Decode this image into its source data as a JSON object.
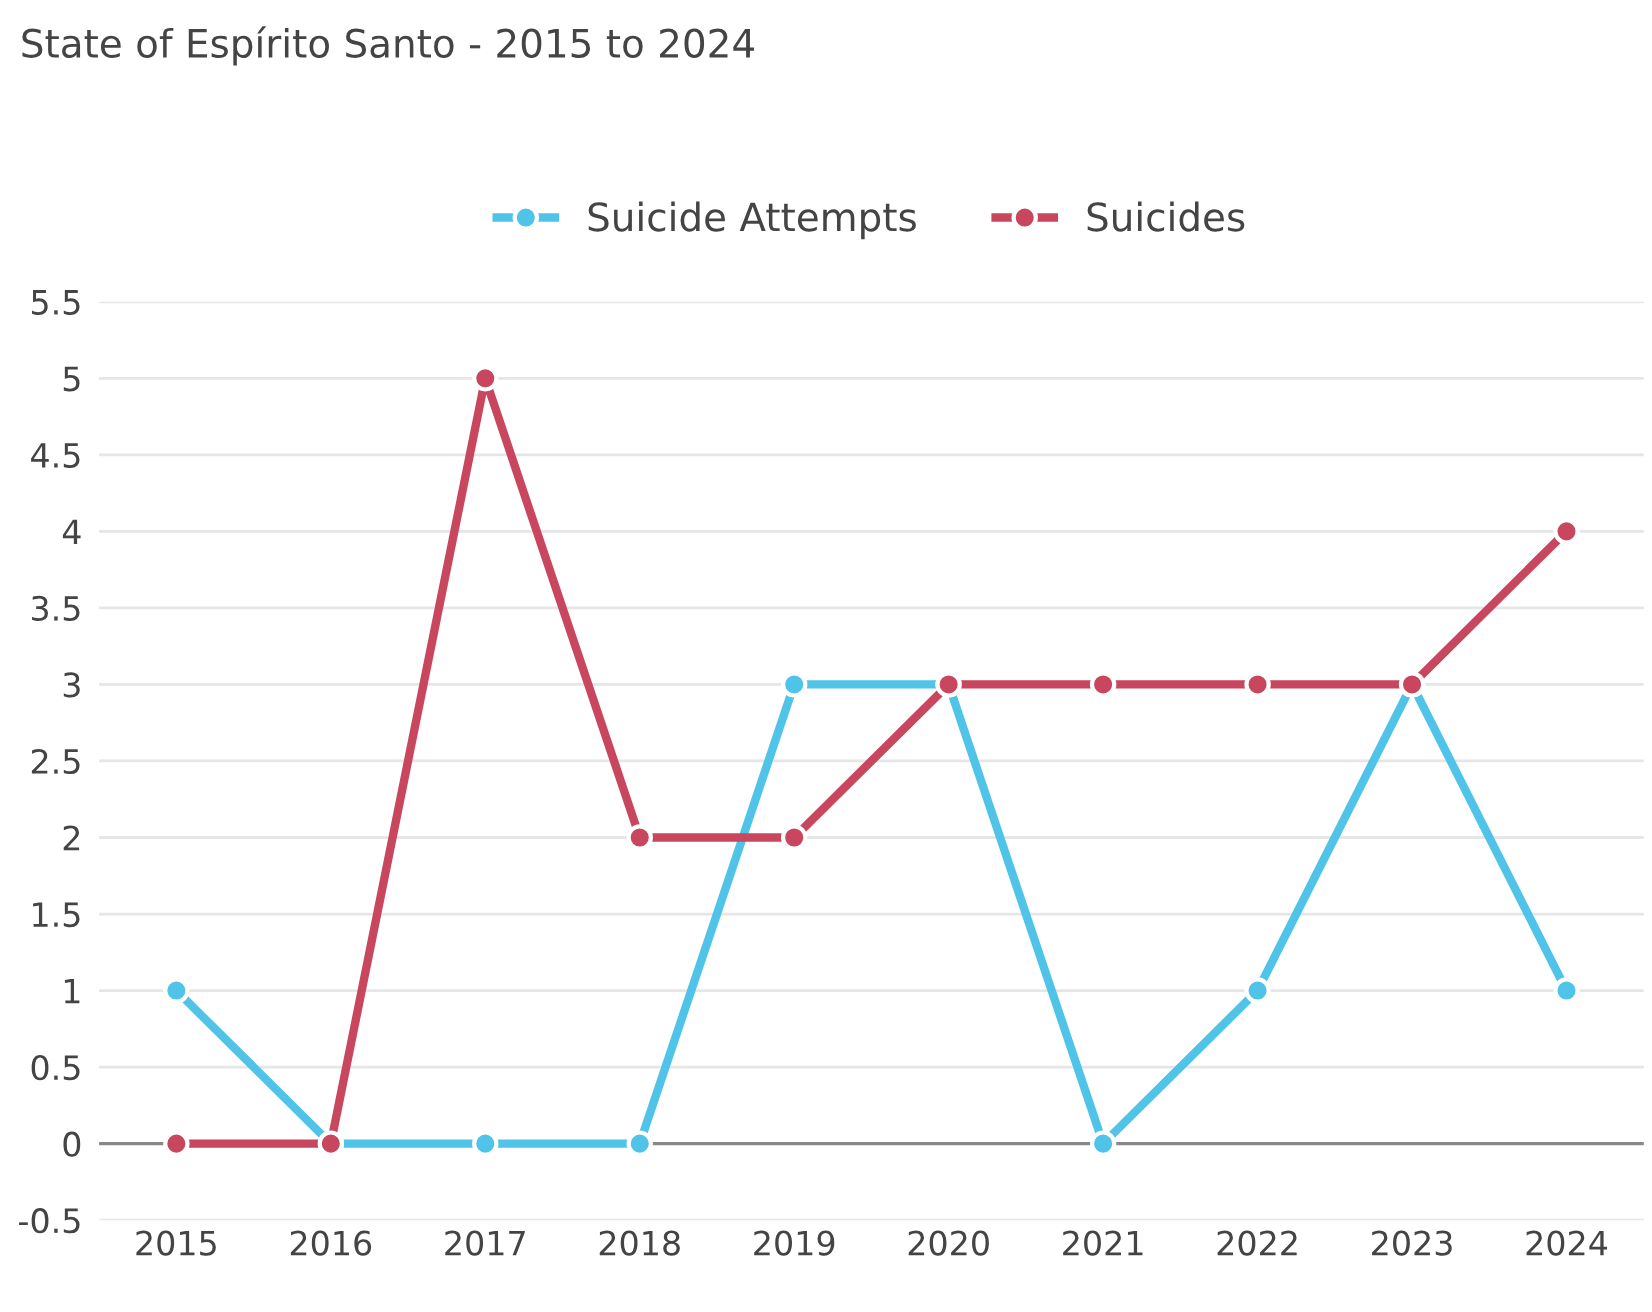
{
  "chart_data": {
    "type": "line",
    "title": "State of Espírito Santo - 2015 to 2024",
    "categories": [
      "2015",
      "2016",
      "2017",
      "2018",
      "2019",
      "2020",
      "2021",
      "2022",
      "2023",
      "2024"
    ],
    "series": [
      {
        "name": "Suicide Attempts",
        "color": "#4fc3e8",
        "values": [
          1,
          0,
          0,
          0,
          3,
          3,
          0,
          1,
          3,
          1
        ]
      },
      {
        "name": "Suicides",
        "color": "#c8475e",
        "values": [
          0,
          0,
          5,
          2,
          2,
          3,
          3,
          3,
          3,
          4
        ]
      }
    ],
    "ylim": [
      -0.5,
      5.5
    ],
    "yticks": [
      -0.5,
      0,
      0.5,
      1,
      1.5,
      2,
      2.5,
      3,
      3.5,
      4,
      4.5,
      5,
      5.5
    ],
    "grid": "y",
    "legend": "top",
    "marker": "circle",
    "line_style": "solid",
    "ref_lines": [
      {
        "axis": "y",
        "value": 0,
        "color": "#888888"
      }
    ]
  }
}
